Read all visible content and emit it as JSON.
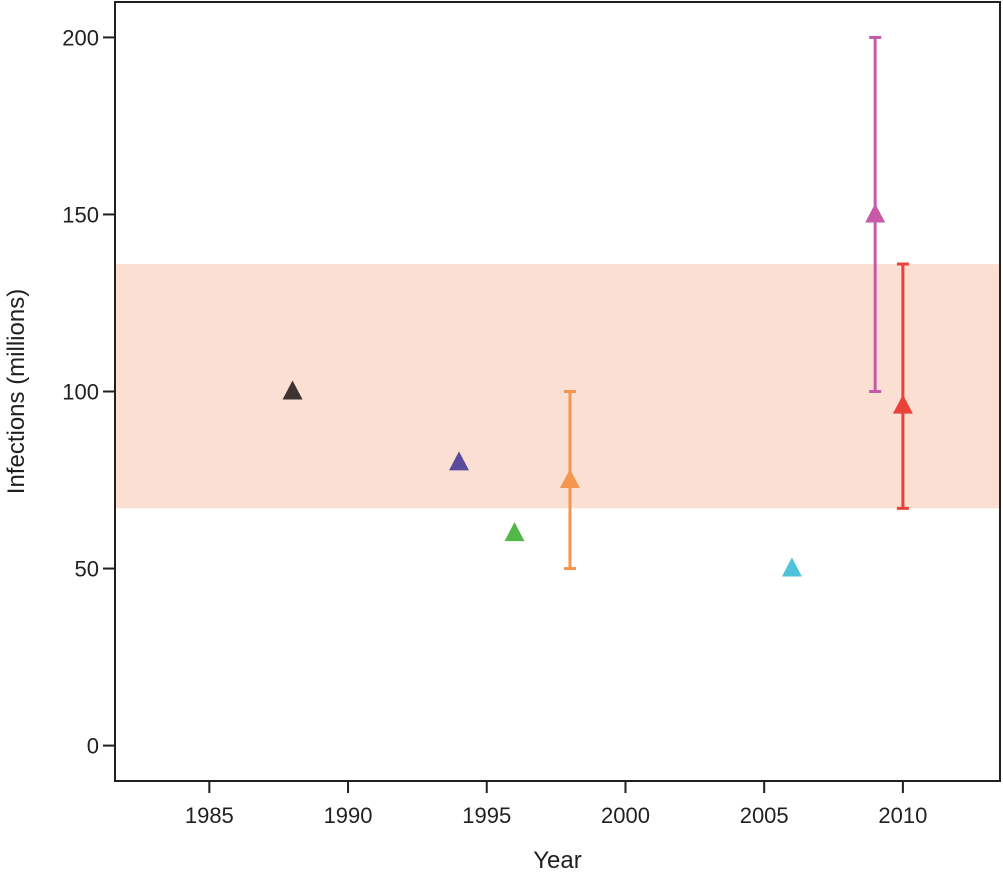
{
  "chart_data": {
    "type": "scatter",
    "title": "",
    "xlabel": "Year",
    "ylabel": "Infections (millions)",
    "xlim": [
      1981.6,
      2013.5
    ],
    "ylim": [
      -10,
      210
    ],
    "x_ticks": [
      1985,
      1990,
      1995,
      2000,
      2005,
      2010
    ],
    "y_ticks": [
      0,
      50,
      100,
      150,
      200
    ],
    "grid": false,
    "legend": "none",
    "marker": "triangle",
    "band": {
      "y_low": 67,
      "y_high": 136,
      "color": "#fcdfd3"
    },
    "points": [
      {
        "x": 1988,
        "y": 100,
        "color": "#3d3330"
      },
      {
        "x": 1994,
        "y": 80,
        "color": "#5a4a9c"
      },
      {
        "x": 1996,
        "y": 60,
        "color": "#52b848"
      },
      {
        "x": 1998,
        "y": 75,
        "y_low": 50,
        "y_high": 100,
        "color": "#f3964f"
      },
      {
        "x": 2006,
        "y": 50,
        "color": "#4ec2d8"
      },
      {
        "x": 2009,
        "y": 150,
        "y_low": 100,
        "y_high": 200,
        "color": "#c75aa8"
      },
      {
        "x": 2010,
        "y": 96,
        "y_low": 67,
        "y_high": 136,
        "color": "#e8423a"
      }
    ]
  }
}
